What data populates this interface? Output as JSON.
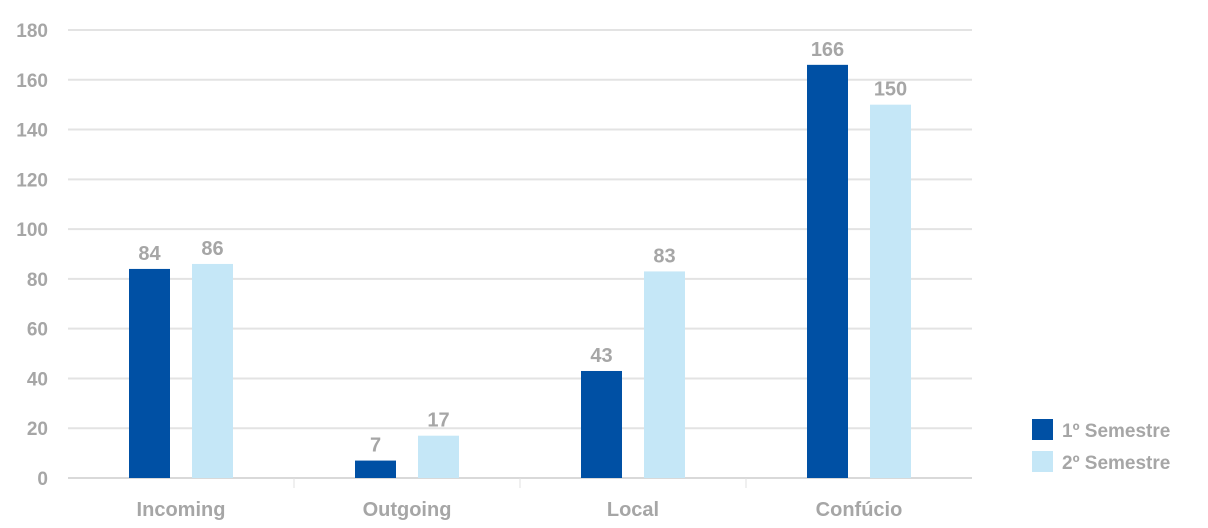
{
  "chart_data": {
    "type": "bar",
    "categories": [
      "Incoming",
      "Outgoing",
      "Local",
      "Confúcio"
    ],
    "series": [
      {
        "name": "1º Semestre",
        "values": [
          84,
          7,
          43,
          166
        ],
        "color": "#0050a4"
      },
      {
        "name": "2º Semestre",
        "values": [
          86,
          17,
          83,
          150
        ],
        "color": "#c5e7f7"
      }
    ],
    "ylim": [
      0,
      180
    ],
    "yticks": [
      0,
      20,
      40,
      60,
      80,
      100,
      120,
      140,
      160,
      180
    ],
    "grid": true,
    "legend": "right",
    "data_labels": true
  }
}
